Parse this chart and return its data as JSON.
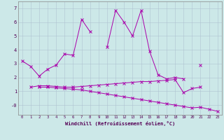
{
  "xlabel": "Windchill (Refroidissement éolien,°C)",
  "background_color": "#cce8e8",
  "line_color": "#aa00aa",
  "line1": [
    3.2,
    2.8,
    2.1,
    2.6,
    2.9,
    3.7,
    3.6,
    6.2,
    5.3,
    null,
    4.2,
    6.85,
    6.0,
    5.0,
    6.85,
    3.9,
    2.2,
    1.9,
    2.0,
    1.9,
    null,
    2.9,
    null,
    null
  ],
  "line2": [
    null,
    1.3,
    1.4,
    1.4,
    1.35,
    1.3,
    1.3,
    1.35,
    1.4,
    1.45,
    1.5,
    1.55,
    1.6,
    1.65,
    1.7,
    1.7,
    1.75,
    1.8,
    1.85,
    0.9,
    1.2,
    1.3,
    null,
    null
  ],
  "line3": [
    null,
    null,
    1.3,
    1.3,
    1.25,
    1.2,
    1.15,
    1.1,
    1.0,
    0.9,
    0.8,
    0.7,
    0.6,
    0.5,
    0.4,
    0.3,
    0.2,
    0.1,
    0.0,
    -0.1,
    -0.2,
    -0.15,
    -0.3,
    -0.45
  ],
  "xlim": [
    -0.5,
    23.5
  ],
  "ylim": [
    -0.7,
    7.5
  ],
  "yticks": [
    0,
    1,
    2,
    3,
    4,
    5,
    6,
    7
  ],
  "yticklabels": [
    "-0",
    "1",
    "2",
    "3",
    "4",
    "5",
    "6",
    "7"
  ],
  "xticks": [
    0,
    1,
    2,
    3,
    4,
    5,
    6,
    7,
    8,
    9,
    10,
    11,
    12,
    13,
    14,
    15,
    16,
    17,
    18,
    19,
    20,
    21,
    22,
    23
  ],
  "grid_color": "#aabbcc",
  "tick_color": "#550055",
  "xlabel_color": "#550055"
}
